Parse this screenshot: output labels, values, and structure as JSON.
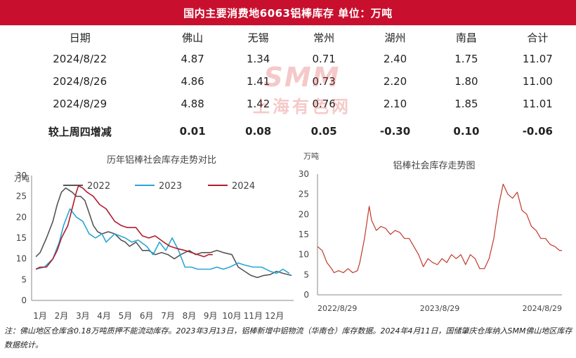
{
  "banner_title": "国内主要消费地6063铝棒库存    单位：万吨",
  "table": {
    "headers": [
      "日期",
      "佛山",
      "无锡",
      "常州",
      "湖州",
      "南昌",
      "合计"
    ],
    "rows": [
      [
        "2024/8/22",
        "4.87",
        "1.34",
        "0.71",
        "2.40",
        "1.75",
        "11.07"
      ],
      [
        "2024/8/26",
        "4.86",
        "1.41",
        "0.73",
        "2.20",
        "1.80",
        "11.00"
      ],
      [
        "2024/8/29",
        "4.88",
        "1.42",
        "0.76",
        "2.10",
        "1.85",
        "11.01"
      ]
    ],
    "change_row": [
      "较上周四增减",
      "0.01",
      "0.08",
      "0.05",
      "-0.30",
      "0.10",
      "-0.06"
    ]
  },
  "watermark": {
    "line1": "SMM",
    "line2": "上海有色网"
  },
  "colors": {
    "banner": "#c8102e",
    "s2022": "#555555",
    "s2023": "#29a6d4",
    "s2024": "#b01c2e",
    "trend": "#c0392b"
  },
  "chart_data": [
    {
      "type": "line",
      "title": "历年铝棒社会库存走势对比",
      "ylabel": "万吨",
      "ylim": [
        0,
        30
      ],
      "yticks": [
        0,
        5,
        10,
        15,
        20,
        25,
        30
      ],
      "xlim": [
        0.6,
        12.9
      ],
      "xticks": [
        "1月",
        "2月",
        "3月",
        "4月",
        "5月",
        "6月",
        "7月",
        "8月",
        "9月",
        "10月",
        "11月",
        "12月"
      ],
      "legend_position": "top",
      "series": [
        {
          "name": "2022",
          "x": [
            0.8,
            1.0,
            1.3,
            1.6,
            1.8,
            2.0,
            2.2,
            2.5,
            2.7,
            2.9,
            3.1,
            3.3,
            3.5,
            3.7,
            3.9,
            4.2,
            4.5,
            4.8,
            5.0,
            5.2,
            5.5,
            5.8,
            6.1,
            6.4,
            6.7,
            7.0,
            7.3,
            7.6,
            8.0,
            8.3,
            8.6,
            9.0,
            9.3,
            9.6,
            10.0,
            10.3,
            10.6,
            10.9,
            11.2,
            11.5,
            11.8,
            12.1,
            12.4,
            12.8
          ],
          "y": [
            10.5,
            11.5,
            15,
            19,
            23,
            26,
            27,
            26,
            25,
            25,
            24,
            21,
            18,
            16.5,
            16,
            16.5,
            16,
            14.5,
            14,
            13,
            14,
            12,
            12,
            11,
            11.5,
            11,
            10,
            11,
            12,
            11,
            11.5,
            11.5,
            12,
            11.5,
            11,
            8,
            7,
            6,
            5.5,
            6,
            6.2,
            7,
            6.5,
            6
          ]
        },
        {
          "name": "2023",
          "x": [
            0.8,
            1.2,
            1.6,
            1.9,
            2.1,
            2.4,
            2.7,
            3.0,
            3.3,
            3.6,
            3.9,
            4.1,
            4.5,
            5.0,
            5.3,
            5.6,
            6.0,
            6.3,
            6.6,
            6.9,
            7.2,
            7.5,
            7.8,
            8.1,
            8.4,
            8.7,
            9.0,
            9.3,
            9.6,
            9.9,
            10.3,
            10.6,
            11.0,
            11.4,
            11.8,
            12.1,
            12.4,
            12.7
          ],
          "y": [
            7.5,
            8,
            10,
            14,
            18,
            22,
            20,
            19,
            16,
            15,
            16,
            14,
            16,
            15,
            14,
            14.5,
            13,
            11,
            14,
            12,
            15,
            12,
            8,
            8,
            7.5,
            7.5,
            7.5,
            8,
            7.5,
            8,
            9,
            8.5,
            8,
            8,
            7,
            6.5,
            7.5,
            6.5
          ]
        },
        {
          "name": "2024",
          "x": [
            0.8,
            1.0,
            1.3,
            1.6,
            1.8,
            2.0,
            2.3,
            2.5,
            2.7,
            2.8,
            3.0,
            3.2,
            3.5,
            3.8,
            4.1,
            4.5,
            4.8,
            5.1,
            5.5,
            5.8,
            6.1,
            6.4,
            6.8,
            7.1,
            7.4,
            7.8,
            8.1,
            8.4,
            8.7,
            8.9,
            9.1
          ],
          "y": [
            7.5,
            8,
            8,
            10,
            12,
            15,
            18,
            22,
            26,
            27.5,
            27,
            26,
            25,
            23,
            22,
            19,
            18,
            17.5,
            17.5,
            15.5,
            15,
            15.5,
            14,
            13,
            12.5,
            12,
            11.5,
            11,
            10.5,
            11,
            11
          ]
        }
      ]
    },
    {
      "type": "line",
      "title": "铝棒社会库存走势图",
      "ylabel": "万吨",
      "ylim": [
        0,
        30
      ],
      "yticks": [
        0,
        5,
        10,
        15,
        20,
        25,
        30
      ],
      "xlim": [
        0,
        104
      ],
      "xtick_labels": [
        "2022/8/29",
        "2023/8/29",
        "2024/8/29"
      ],
      "xtick_positions": [
        0,
        52,
        104
      ],
      "series": [
        {
          "name": "铝棒社会库存",
          "x": [
            0,
            2,
            4,
            6,
            7,
            9,
            11,
            13,
            15,
            17,
            18,
            20,
            22,
            23,
            25,
            27,
            29,
            31,
            33,
            35,
            37,
            39,
            41,
            43,
            45,
            47,
            49,
            51,
            53,
            55,
            57,
            59,
            61,
            63,
            65,
            67,
            69,
            71,
            73,
            75,
            77,
            79,
            81,
            83,
            85,
            87,
            89,
            91,
            93,
            95,
            97,
            99,
            101,
            103,
            104
          ],
          "y": [
            12,
            11,
            8,
            6.5,
            5.5,
            6,
            5.5,
            6.5,
            5.5,
            6,
            8,
            14,
            22,
            18.5,
            16,
            17,
            16.5,
            15,
            16,
            15.5,
            14,
            14,
            12,
            10,
            7,
            9,
            8,
            7.5,
            9,
            8,
            10,
            9,
            10,
            7.5,
            10,
            9,
            6.5,
            6.5,
            9,
            14,
            22,
            27.5,
            25,
            24,
            25.5,
            21,
            20,
            17,
            16,
            14,
            14,
            12.5,
            12,
            11,
            11
          ]
        }
      ]
    }
  ],
  "footnote": "注：佛山地区仓库含0.18万吨质押不能流动库存。2023年3月13日，铝棒新增中铝物流（华南仓）库存数据。2024年4月11日，国储肇庆仓库纳入SMM佛山地区库存数据统计。"
}
